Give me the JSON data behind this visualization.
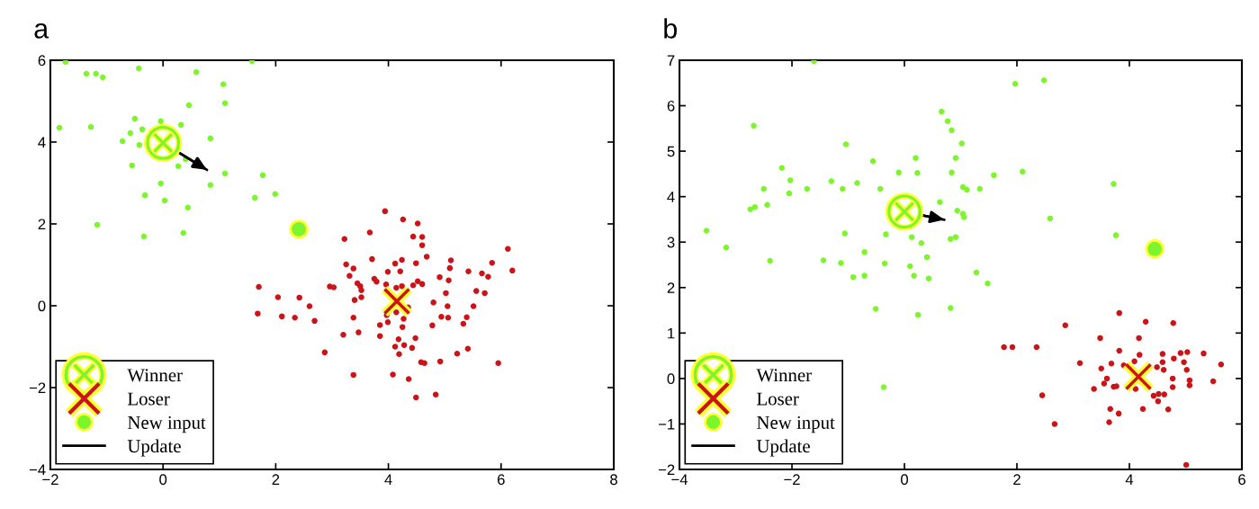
{
  "chart_data": [
    {
      "type": "scatter",
      "title": "a",
      "xlim": [
        -2,
        8
      ],
      "ylim": [
        -4,
        6
      ],
      "xticks": [
        -2,
        0,
        2,
        4,
        6,
        8
      ],
      "yticks": [
        -4,
        -2,
        0,
        2,
        4,
        6
      ],
      "grid": false,
      "legend": "bottom left",
      "series": [
        {
          "color": "#7df52d",
          "marker": "circle",
          "x": [
            -1.73,
            -1.36,
            -1.19,
            -1.07,
            -0.43,
            0.59,
            1.07,
            0.46,
            1.1,
            -1.84,
            -1.28,
            -0.5,
            -0.37,
            -0.58,
            -0.72,
            -0.42,
            -0.04,
            0.32,
            0.84,
            -0.55,
            0.27,
            0.4,
            1.1,
            1.77,
            -0.04,
            0.84,
            1.99,
            1.63,
            -0.32,
            0.03,
            0.44,
            -1.17,
            -0.34,
            0.36,
            1.58
          ],
          "values": [
            5.96,
            5.67,
            5.67,
            5.58,
            5.8,
            5.71,
            5.41,
            4.9,
            4.95,
            4.35,
            4.37,
            4.57,
            4.31,
            4.22,
            4.02,
            3.93,
            4.51,
            4.42,
            4.09,
            3.43,
            3.41,
            3.58,
            3.23,
            3.19,
            2.99,
            2.95,
            2.73,
            2.64,
            2.7,
            2.57,
            2.4,
            1.98,
            1.69,
            1.78,
            5.98
          ]
        },
        {
          "color": "#cc1418",
          "marker": "circle",
          "x": [
            3.94,
            4.26,
            4.52,
            3.67,
            3.22,
            4.44,
            4.6,
            4.6,
            6.12,
            3.71,
            4.68,
            4.24,
            4.12,
            4.49,
            5.11,
            3.25,
            3.38,
            3.99,
            4.21,
            5.09,
            5.42,
            5.66,
            5.77,
            5.84,
            6.2,
            3.31,
            3.75,
            3.79,
            3.45,
            3.5,
            3.52,
            2.96,
            3.03,
            1.7,
            2.04,
            2.42,
            2.6,
            1.68,
            2.11,
            2.34,
            2.69,
            3.4,
            3.52,
            3.96,
            4.14,
            4.24,
            4.44,
            4.52,
            4.6,
            4.91,
            5.07,
            5.02,
            5.56,
            5.71,
            4.8,
            5.05,
            5.51,
            4.35,
            4.14,
            3.97,
            3.38,
            4.27,
            3.99,
            3.85,
            4.25,
            4.94,
            5.06,
            5.39,
            5.33,
            4.78,
            3.2,
            3.47,
            3.85,
            4.18,
            4.48,
            4.12,
            4.28,
            4.42,
            4.19,
            2.87,
            5.22,
            5.41,
            4.92,
            4.58,
            4.64,
            5.95,
            3.38,
            4.08,
            4.36,
            4.49,
            4.84
          ],
          "values": [
            2.31,
            2.11,
            2.01,
            1.79,
            1.63,
            1.69,
            1.68,
            1.48,
            1.39,
            1.14,
            1.2,
            1.12,
            1.03,
            1.04,
            1.11,
            1.01,
            0.91,
            0.83,
            0.84,
            0.92,
            0.84,
            0.79,
            0.71,
            1.05,
            0.86,
            0.73,
            0.66,
            0.59,
            0.55,
            0.48,
            0.38,
            0.47,
            0.45,
            0.46,
            0.21,
            0.2,
            -0.01,
            -0.19,
            -0.26,
            -0.29,
            -0.37,
            0.14,
            0.21,
            0.52,
            0.44,
            0.48,
            0.5,
            0.6,
            0.53,
            0.7,
            0.62,
            0.31,
            0.36,
            0.31,
            0.08,
            -0.01,
            -0.01,
            -0.04,
            -0.16,
            -0.23,
            -0.29,
            -0.32,
            -0.4,
            -0.47,
            -0.52,
            -0.27,
            -0.29,
            -0.28,
            -0.44,
            -0.48,
            -0.71,
            -0.65,
            -0.74,
            -0.82,
            -0.79,
            -1.0,
            -0.96,
            -1.03,
            -1.18,
            -1.14,
            -1.17,
            -1.05,
            -1.36,
            -1.38,
            -1.4,
            -1.4,
            -1.69,
            -1.68,
            -1.79,
            -2.24,
            -2.17
          ]
        },
        {
          "name": "Winner",
          "color": "#7df52d",
          "marker": "circle",
          "x": [
            0.0
          ],
          "values": [
            3.98
          ]
        },
        {
          "name": "Loser",
          "color": "#cc1418",
          "marker": "cross",
          "x": [
            4.15
          ],
          "values": [
            0.11
          ]
        },
        {
          "name": "New input",
          "color": "#7df52d",
          "marker": "circle",
          "x": [
            2.41
          ],
          "values": [
            1.87
          ]
        },
        {
          "name": "Update",
          "type": "line",
          "color": "#000000",
          "x": [
            0.0,
            0.78
          ],
          "values": [
            3.98,
            3.32
          ]
        }
      ]
    },
    {
      "type": "scatter",
      "title": "b",
      "xlim": [
        -4,
        6
      ],
      "ylim": [
        -2,
        7
      ],
      "xticks": [
        -4,
        -2,
        0,
        2,
        4,
        6
      ],
      "yticks": [
        -2,
        -1,
        0,
        1,
        2,
        3,
        4,
        5,
        6,
        7
      ],
      "grid": false,
      "legend": "bottom left",
      "series": [
        {
          "color": "#7df52d",
          "marker": "circle",
          "x": [
            -1.61,
            -2.68,
            -1.04,
            -2.18,
            -2.03,
            -2.05,
            -2.5,
            -2.74,
            -2.66,
            -2.44,
            -1.73,
            -1.3,
            -1.1,
            -0.84,
            -0.56,
            -0.43,
            -0.1,
            0.2,
            0.23,
            0.66,
            0.77,
            0.84,
            1.02,
            0.91,
            0.84,
            1.04,
            1.11,
            1.34,
            1.59,
            2.1,
            1.97,
            0.63,
            0.94,
            1.04,
            1.06,
            -3.52,
            -3.17,
            -2.39,
            -1.06,
            -0.33,
            0.13,
            0.3,
            0.82,
            0.91,
            -0.71,
            -1.44,
            -1.13,
            -0.35,
            0.1,
            0.4,
            -0.91,
            -0.71,
            0.17,
            0.43,
            1.28,
            1.48,
            -0.51,
            0.24,
            0.82,
            2.48,
            3.72,
            2.59,
            3.76,
            -0.37
          ],
          "values": [
            6.98,
            5.56,
            5.15,
            4.63,
            4.36,
            4.07,
            4.17,
            3.72,
            3.77,
            3.82,
            4.17,
            4.34,
            4.17,
            4.3,
            4.78,
            4.17,
            4.53,
            4.85,
            4.52,
            5.87,
            5.66,
            5.46,
            5.17,
            4.85,
            4.53,
            4.21,
            4.15,
            4.17,
            4.47,
            4.55,
            6.48,
            3.88,
            3.69,
            3.62,
            3.55,
            3.25,
            2.88,
            2.59,
            3.19,
            3.17,
            3.11,
            2.98,
            3.07,
            3.11,
            2.78,
            2.6,
            2.54,
            2.53,
            2.47,
            2.67,
            2.23,
            2.26,
            2.26,
            2.2,
            2.33,
            2.09,
            1.53,
            1.4,
            1.55,
            6.56,
            4.28,
            3.52,
            3.15,
            -0.19
          ]
        },
        {
          "color": "#cc1418",
          "marker": "circle",
          "x": [
            3.82,
            2.86,
            4.29,
            4.78,
            2.35,
            3.48,
            4.17,
            3.82,
            4.18,
            4.59,
            4.91,
            5.03,
            5.32,
            3.12,
            3.68,
            3.5,
            3.9,
            4.09,
            4.49,
            4.59,
            4.79,
            4.97,
            4.61,
            5.02,
            5.63,
            3.6,
            3.55,
            3.37,
            3.72,
            3.77,
            4.11,
            4.77,
            4.77,
            5.07,
            5.07,
            5.49,
            4.43,
            4.52,
            4.62,
            4.51,
            2.45,
            3.66,
            3.81,
            4.24,
            4.69,
            3.64,
            2.67,
            5.01,
            1.77,
            1.92
          ],
          "values": [
            1.44,
            1.17,
            1.25,
            1.22,
            0.69,
            0.89,
            0.89,
            0.61,
            0.52,
            0.54,
            0.56,
            0.58,
            0.55,
            0.34,
            0.33,
            0.22,
            0.29,
            0.38,
            0.25,
            0.36,
            0.44,
            0.36,
            0.19,
            0.19,
            0.31,
            0.0,
            -0.11,
            -0.23,
            -0.18,
            -0.17,
            -0.23,
            0.0,
            -0.19,
            -0.04,
            -0.15,
            -0.06,
            -0.38,
            -0.34,
            -0.35,
            -0.5,
            -0.37,
            -0.67,
            -0.77,
            -0.67,
            -0.68,
            -0.96,
            -1.0,
            -1.9,
            0.69,
            0.69
          ]
        },
        {
          "name": "Winner",
          "color": "#7df52d",
          "marker": "circle",
          "x": [
            0.0
          ],
          "values": [
            3.67
          ]
        },
        {
          "name": "Loser",
          "color": "#cc1418",
          "marker": "cross",
          "x": [
            4.16
          ],
          "values": [
            0.04
          ]
        },
        {
          "name": "New input",
          "color": "#7df52d",
          "marker": "circle",
          "x": [
            4.45
          ],
          "values": [
            2.85
          ]
        },
        {
          "name": "Update",
          "type": "line",
          "color": "#000000",
          "x": [
            0.0,
            0.71
          ],
          "values": [
            3.67,
            3.49
          ]
        }
      ]
    }
  ]
}
